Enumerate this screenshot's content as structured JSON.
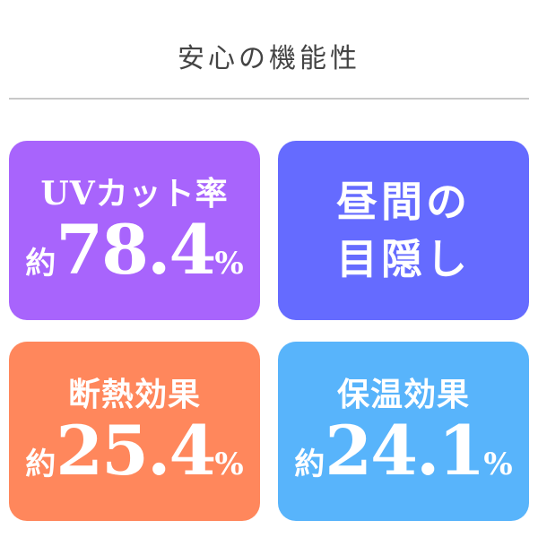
{
  "title": "安心の機能性",
  "cards": [
    {
      "label": "UVカット率",
      "prefix": "約",
      "value": "78.4",
      "unit": "%",
      "color": "#a864fc"
    },
    {
      "line1": "昼間の",
      "line2": "目隠し",
      "color": "#656bff"
    },
    {
      "label": "断熱効果",
      "prefix": "約",
      "value": "25.4",
      "unit": "%",
      "color": "#ff875c"
    },
    {
      "label": "保温効果",
      "prefix": "約",
      "value": "24.1",
      "unit": "%",
      "color": "#58b4fb"
    }
  ]
}
